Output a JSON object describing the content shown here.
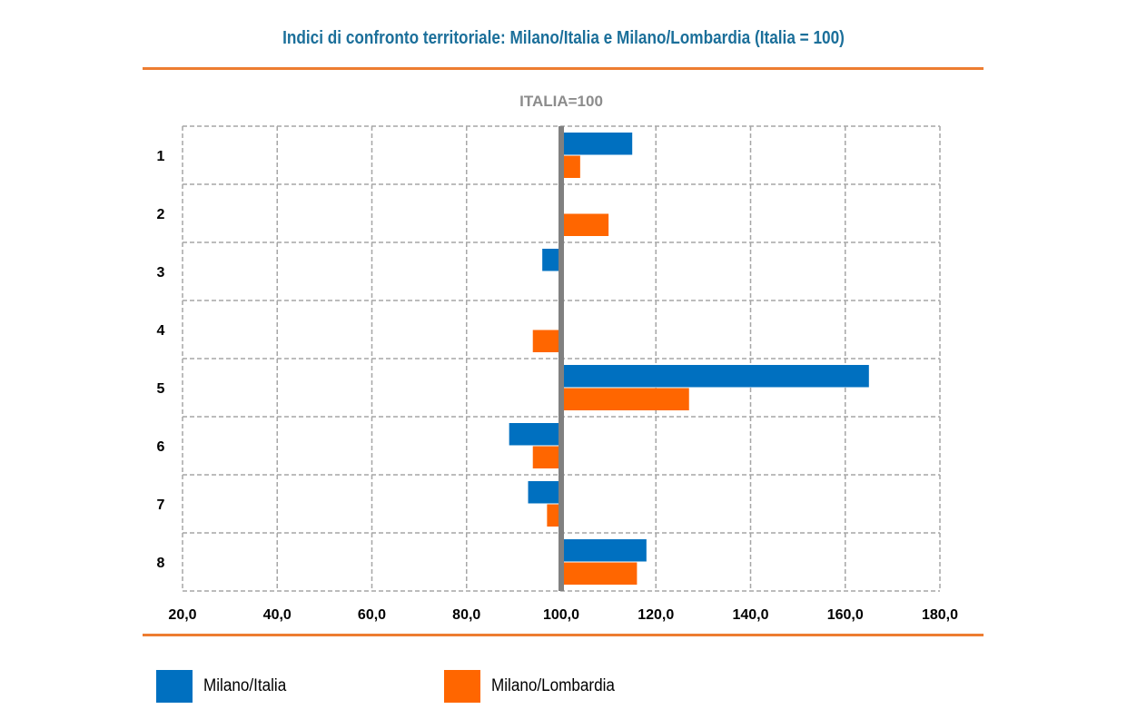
{
  "title": "Indici di confronto territoriale: Milano/Italia e Milano/Lombardia (Italia = 100)",
  "colors": {
    "accent": "#ed7d31",
    "title": "#1b6f9a",
    "series1": "#0070c0",
    "series2": "#ff6600",
    "reference": "#808080"
  },
  "legend": {
    "series1_label": "Milano/Italia",
    "series2_label": "Milano/Lombardia"
  },
  "chart_data": {
    "type": "bar",
    "orientation": "horizontal",
    "title": "Indici di confronto territoriale: Milano/Italia e Milano/Lombardia (Italia = 100)",
    "reference_label": "ITALIA=100",
    "reference_value": 100,
    "categories": [
      "1",
      "2",
      "3",
      "4",
      "5",
      "6",
      "7",
      "8"
    ],
    "xlim": [
      20,
      180
    ],
    "xticks": [
      20,
      40,
      60,
      80,
      100,
      120,
      140,
      160,
      180
    ],
    "xtick_labels": [
      "20,0",
      "40,0",
      "60,0",
      "80,0",
      "100,0",
      "120,0",
      "140,0",
      "160,0",
      "180,0"
    ],
    "grid": true,
    "legend_position": "bottom",
    "series": [
      {
        "name": "Milano/Italia",
        "color": "#0070c0",
        "values": [
          115,
          100,
          96,
          100,
          165,
          89,
          93,
          118
        ]
      },
      {
        "name": "Milano/Lombardia",
        "color": "#ff6600",
        "values": [
          104,
          110,
          100,
          94,
          127,
          94,
          97,
          116
        ]
      }
    ]
  }
}
